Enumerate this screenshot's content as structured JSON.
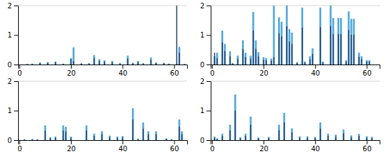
{
  "chart_data": [
    {
      "type": "bar",
      "x": [
        3,
        5,
        8,
        11,
        14,
        17,
        20,
        21,
        24,
        27,
        29,
        31,
        33,
        36,
        39,
        42,
        44,
        46,
        48,
        51,
        53,
        56,
        58,
        61,
        62,
        64
      ],
      "series": [
        {
          "color": "#4EA6DC",
          "values": [
            0.02,
            0.03,
            0.07,
            0.08,
            0.1,
            0.03,
            0.22,
            0.58,
            0.04,
            0.05,
            0.32,
            0.18,
            0.14,
            0.12,
            0.05,
            0.3,
            0.06,
            0.12,
            0.05,
            0.24,
            0.07,
            0.06,
            0.03,
            0.03,
            0.6,
            0.02
          ]
        },
        {
          "color": "#1F3864",
          "values": [
            0.015,
            0.02,
            0.05,
            0.06,
            0.08,
            0.02,
            0.18,
            0.12,
            0.03,
            0.03,
            0.22,
            0.12,
            0.09,
            0.08,
            0.03,
            0.2,
            0.04,
            0.08,
            0.03,
            0.16,
            0.05,
            0.04,
            0.02,
            2.0,
            0.4,
            0.01
          ]
        }
      ],
      "xlim": [
        -0.5,
        65
      ],
      "ylim": [
        0,
        2
      ],
      "xticks": [
        0,
        20,
        40,
        60
      ],
      "yticks": [
        0,
        1,
        2
      ],
      "hline": 2
    },
    {
      "type": "bar",
      "x": [
        1,
        2,
        4,
        5,
        7,
        8,
        10,
        12,
        13,
        15,
        16,
        17,
        18,
        20,
        21,
        23,
        24,
        26,
        27,
        29,
        30,
        31,
        33,
        35,
        36,
        38,
        39,
        42,
        43,
        46,
        47,
        49,
        50,
        52,
        53,
        54,
        55,
        57,
        58,
        60,
        61
      ],
      "series": [
        {
          "color": "#4EA6DC",
          "values": [
            0.28,
            0.4,
            1.15,
            0.7,
            0.45,
            0.05,
            0.3,
            0.82,
            0.4,
            0.3,
            1.78,
            0.82,
            0.42,
            0.25,
            0.22,
            0.2,
            2.0,
            1.6,
            1.45,
            2.0,
            1.2,
            1.08,
            0.08,
            1.93,
            0.1,
            0.28,
            0.55,
            1.93,
            0.1,
            2.0,
            1.58,
            1.58,
            1.58,
            0.15,
            1.8,
            1.55,
            1.55,
            0.4,
            0.28,
            0.15,
            0.15
          ]
        },
        {
          "color": "#1F3864",
          "values": [
            0.4,
            0.22,
            0.75,
            0.45,
            0.28,
            0.03,
            0.2,
            0.52,
            0.26,
            0.2,
            1.15,
            0.53,
            0.27,
            0.16,
            0.14,
            0.13,
            0.25,
            1.05,
            0.95,
            1.3,
            0.78,
            0.7,
            0.05,
            1.25,
            0.07,
            0.18,
            0.36,
            1.26,
            0.07,
            1.3,
            1.03,
            1.03,
            1.03,
            0.1,
            1.17,
            1.01,
            1.01,
            0.26,
            0.18,
            0.1,
            0.1
          ]
        }
      ],
      "xlim": [
        -0.5,
        65
      ],
      "ylim": [
        0,
        2
      ],
      "xticks": [
        0,
        20,
        40,
        60
      ],
      "yticks": [
        0,
        1,
        2
      ],
      "hline": 2
    },
    {
      "type": "bar",
      "x": [
        2,
        5,
        7,
        10,
        12,
        14,
        17,
        18,
        20,
        26,
        29,
        32,
        35,
        38,
        40,
        44,
        46,
        48,
        50,
        53,
        57,
        59,
        62,
        63
      ],
      "series": [
        {
          "color": "#4EA6DC",
          "values": [
            0.03,
            0.04,
            0.03,
            0.5,
            0.1,
            0.12,
            0.5,
            0.45,
            0.12,
            0.5,
            0.22,
            0.3,
            0.15,
            0.12,
            0.14,
            1.08,
            0.05,
            0.6,
            0.3,
            0.3,
            0.06,
            0.03,
            0.7,
            0.3
          ]
        },
        {
          "color": "#1F3864",
          "values": [
            0.02,
            0.02,
            0.02,
            0.32,
            0.06,
            0.08,
            0.32,
            0.29,
            0.08,
            0.32,
            0.14,
            0.2,
            0.1,
            0.08,
            0.09,
            0.7,
            0.03,
            0.39,
            0.2,
            0.2,
            0.04,
            0.02,
            0.45,
            0.2
          ]
        }
      ],
      "xlim": [
        -0.5,
        65
      ],
      "ylim": [
        0,
        2
      ],
      "xticks": [
        0,
        20,
        40,
        60
      ],
      "yticks": [
        0,
        1,
        2
      ],
      "hline": 2
    },
    {
      "type": "bar",
      "x": [
        1,
        2,
        4,
        7,
        9,
        11,
        13,
        15,
        18,
        22,
        26,
        28,
        31,
        34,
        37,
        40,
        42,
        45,
        48,
        51,
        54,
        57,
        60,
        62
      ],
      "series": [
        {
          "color": "#4EA6DC",
          "values": [
            0.12,
            0.06,
            0.22,
            0.52,
            1.55,
            0.1,
            0.22,
            0.8,
            0.09,
            0.11,
            0.52,
            0.92,
            0.4,
            0.13,
            0.13,
            0.11,
            0.6,
            0.22,
            0.19,
            0.36,
            0.16,
            0.21,
            0.13,
            0.11
          ]
        },
        {
          "color": "#1F3864",
          "values": [
            0.08,
            0.04,
            0.14,
            0.33,
            1.0,
            0.06,
            0.14,
            0.52,
            0.06,
            0.07,
            0.33,
            0.6,
            0.26,
            0.08,
            0.08,
            0.07,
            0.39,
            0.14,
            0.12,
            0.23,
            0.1,
            0.14,
            0.08,
            0.07
          ]
        }
      ],
      "xlim": [
        -0.5,
        65
      ],
      "ylim": [
        0,
        2
      ],
      "xticks": [
        0,
        20,
        40,
        60
      ],
      "yticks": [
        0,
        1,
        2
      ],
      "hline": 2
    }
  ]
}
